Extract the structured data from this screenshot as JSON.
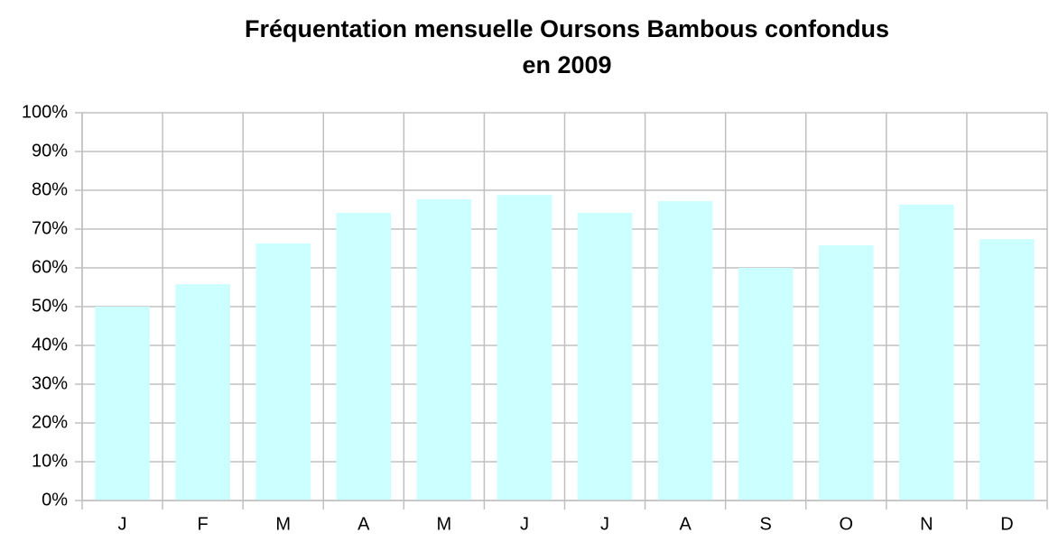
{
  "chart_data": {
    "type": "bar",
    "title": [
      "Fréquentation mensuelle Oursons Bambous confondus",
      "en 2009"
    ],
    "categories": [
      "J",
      "F",
      "M",
      "A",
      "M",
      "J",
      "J",
      "A",
      "S",
      "O",
      "N",
      "D"
    ],
    "values": [
      50,
      55.8,
      66.3,
      74.2,
      77.7,
      78.8,
      74.2,
      77.2,
      60,
      65.8,
      76.3,
      67.4
    ],
    "color": "#ccffff",
    "ylim": [
      0,
      100
    ],
    "yticks": [
      {
        "value": 0,
        "label": "0%"
      },
      {
        "value": 10,
        "label": "10%"
      },
      {
        "value": 20,
        "label": "20%"
      },
      {
        "value": 30,
        "label": "30%"
      },
      {
        "value": 40,
        "label": "40%"
      },
      {
        "value": 50,
        "label": "50%"
      },
      {
        "value": 60,
        "label": "60%"
      },
      {
        "value": 70,
        "label": "70%"
      },
      {
        "value": 80,
        "label": "80%"
      },
      {
        "value": 90,
        "label": "90%"
      },
      {
        "value": 100,
        "label": "100%"
      }
    ],
    "grid": true
  }
}
